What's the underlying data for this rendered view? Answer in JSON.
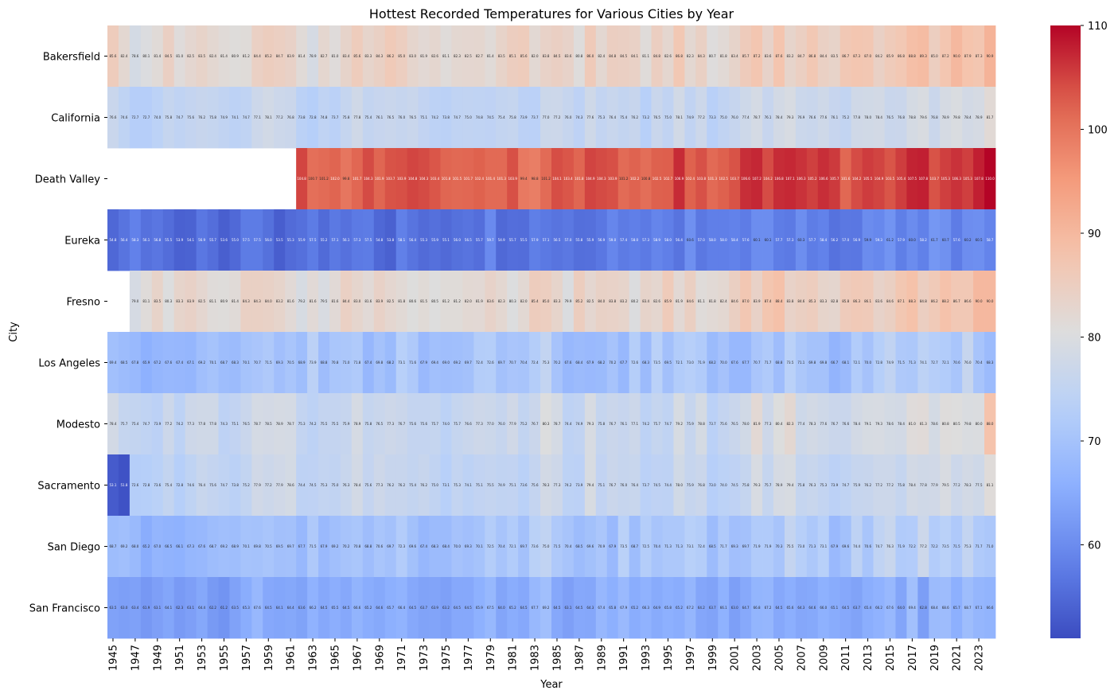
{
  "chart_data": {
    "type": "heatmap",
    "title": "Hottest Recorded Temperatures for Various Cities by Year",
    "xlabel": "Year",
    "ylabel": "City",
    "colormap": "coolwarm",
    "vmin": 51,
    "vmax": 110,
    "colorbar_ticks": [
      60,
      70,
      80,
      90,
      100,
      110
    ],
    "x_tick_labels": [
      "1945",
      "1947",
      "1949",
      "1951",
      "1953",
      "1955",
      "1957",
      "1959",
      "1961",
      "1963",
      "1965",
      "1967",
      "1969",
      "1971",
      "1973",
      "1975",
      "1977",
      "1979",
      "1981",
      "1983",
      "1985",
      "1987",
      "1989",
      "1991",
      "1993",
      "1995",
      "1997",
      "1999",
      "2001",
      "2003",
      "2005",
      "2007",
      "2009",
      "2011",
      "2013",
      "2015",
      "2017",
      "2019",
      "2021",
      "2023"
    ],
    "year_start": 1945,
    "year_end": 2024,
    "cities": [
      "Bakersfield",
      "California",
      "Death Valley",
      "Eureka",
      "Fresno",
      "Los Angeles",
      "Modesto",
      "Sacramento",
      "San Diego",
      "San Francisco"
    ],
    "series": [
      {
        "name": "Bakersfield",
        "values": [
          85.6,
          82.4,
          78.6,
          80.1,
          81.4,
          84.5,
          81.0,
          82.5,
          83.5,
          82.4,
          81.4,
          80.9,
          81.2,
          84.4,
          85.2,
          84.7,
          83.9,
          81.4,
          78.9,
          82.7,
          81.0,
          83.4,
          85.6,
          83.3,
          84.3,
          86.2,
          85.0,
          83.0,
          81.9,
          82.6,
          81.1,
          82.3,
          82.5,
          82.7,
          81.4,
          83.5,
          85.1,
          85.6,
          82.0,
          83.8,
          84.5,
          83.6,
          80.8,
          86.0,
          82.4,
          84.8,
          84.5,
          84.1,
          81.1,
          84.8,
          82.6,
          86.8,
          82.3,
          84.3,
          80.7,
          81.8,
          83.4,
          85.7,
          87.2,
          83.6,
          87.6,
          83.2,
          84.7,
          86.8,
          84.4,
          83.5,
          86.7,
          87.3,
          87.0,
          84.2,
          85.9,
          86.8,
          88.8,
          89.3,
          85.0,
          87.2,
          90.0,
          87.9,
          87.3,
          90.9
        ]
      },
      {
        "name": "California",
        "values": [
          76.6,
          74.6,
          72.7,
          72.7,
          74.0,
          75.8,
          74.7,
          75.6,
          76.2,
          75.8,
          74.9,
          74.1,
          74.7,
          77.1,
          78.1,
          77.2,
          76.8,
          73.8,
          72.8,
          74.8,
          73.7,
          75.8,
          77.8,
          75.4,
          76.1,
          76.5,
          76.0,
          76.5,
          75.1,
          74.2,
          73.8,
          74.7,
          75.0,
          74.8,
          74.5,
          75.4,
          75.8,
          73.9,
          73.7,
          77.0,
          77.2,
          76.0,
          74.3,
          77.6,
          75.3,
          76.4,
          75.4,
          76.2,
          73.2,
          76.5,
          75.0,
          78.1,
          74.9,
          77.2,
          73.3,
          75.0,
          76.0,
          77.4,
          78.7,
          76.1,
          78.4,
          79.3,
          76.9,
          76.6,
          77.6,
          76.1,
          75.2,
          77.8,
          78.0,
          78.4,
          76.5,
          76.8,
          78.8,
          79.6,
          76.8,
          78.9,
          79.8,
          78.4,
          78.9,
          81.7
        ]
      },
      {
        "name": "Death Valley",
        "values": [
          null,
          null,
          null,
          null,
          null,
          null,
          null,
          null,
          null,
          null,
          null,
          null,
          null,
          null,
          null,
          null,
          null,
          104.8,
          100.7,
          101.2,
          102.0,
          99.8,
          101.7,
          104.3,
          101.9,
          103.7,
          103.9,
          104.8,
          104.3,
          103.4,
          101.8,
          101.5,
          101.7,
          102.4,
          101.4,
          101.3,
          103.9,
          99.4,
          98.8,
          101.2,
          104.1,
          103.4,
          101.8,
          104.9,
          104.3,
          103.9,
          101.2,
          102.2,
          100.8,
          102.5,
          102.7,
          106.9,
          102.4,
          103.8,
          101.3,
          102.5,
          103.7,
          106.6,
          107.2,
          104.2,
          106.8,
          107.1,
          106.3,
          105.2,
          106.6,
          105.7,
          101.6,
          104.2,
          105.5,
          104.9,
          103.5,
          105.4,
          107.5,
          107.8,
          103.7,
          105.3,
          106.3,
          105.3,
          107.8,
          110.0
        ]
      },
      {
        "name": "Eureka",
        "values": [
          54.8,
          56.4,
          58.3,
          56.1,
          56.8,
          55.5,
          53.9,
          54.1,
          56.9,
          55.7,
          53.6,
          55.0,
          57.5,
          57.5,
          56.0,
          53.5,
          55.3,
          55.9,
          57.5,
          55.2,
          57.1,
          56.1,
          57.3,
          57.5,
          54.8,
          53.8,
          58.1,
          56.4,
          55.3,
          55.9,
          55.1,
          56.0,
          56.5,
          55.7,
          59.7,
          54.9,
          55.7,
          55.5,
          57.9,
          57.1,
          56.5,
          57.0,
          55.8,
          55.9,
          56.9,
          59.0,
          57.4,
          58.0,
          57.3,
          58.9,
          58.0,
          56.4,
          60.6,
          57.0,
          58.0,
          58.0,
          58.4,
          57.6,
          60.1,
          60.1,
          57.7,
          57.3,
          60.3,
          57.7,
          58.4,
          56.2,
          57.0,
          56.9,
          59.9,
          59.3,
          61.2,
          57.9,
          60.0,
          58.2,
          61.7,
          60.7,
          57.6,
          60.2,
          60.5,
          58.7
        ]
      },
      {
        "name": "Fresno",
        "values": [
          null,
          null,
          79.0,
          81.1,
          83.5,
          80.3,
          83.3,
          83.9,
          82.5,
          81.1,
          80.9,
          81.4,
          84.3,
          84.3,
          84.0,
          83.2,
          81.6,
          79.2,
          81.6,
          79.5,
          81.6,
          84.4,
          83.0,
          81.6,
          83.9,
          82.5,
          81.8,
          80.6,
          81.5,
          80.5,
          81.2,
          81.2,
          82.0,
          81.9,
          83.6,
          82.3,
          80.3,
          82.0,
          85.4,
          85.0,
          83.3,
          79.9,
          85.2,
          82.5,
          84.0,
          83.8,
          83.2,
          80.2,
          83.4,
          82.6,
          85.9,
          81.9,
          84.6,
          81.1,
          81.8,
          82.4,
          84.6,
          87.0,
          83.9,
          87.4,
          88.4,
          83.8,
          84.6,
          85.3,
          83.3,
          82.8,
          85.8,
          86.3,
          86.1,
          83.6,
          84.6,
          87.1,
          88.3,
          84.8,
          86.2,
          88.2,
          86.7,
          86.6,
          90.0,
          90.0
        ]
      },
      {
        "name": "Los Angeles",
        "values": [
          69.4,
          68.5,
          67.8,
          65.9,
          67.2,
          67.6,
          67.4,
          67.1,
          69.2,
          70.1,
          68.7,
          68.3,
          70.1,
          70.7,
          71.5,
          69.3,
          70.5,
          68.9,
          73.9,
          68.8,
          70.8,
          71.0,
          71.8,
          67.4,
          69.8,
          68.2,
          73.1,
          71.6,
          67.9,
          69.4,
          69.0,
          69.2,
          69.7,
          72.4,
          72.6,
          69.7,
          70.7,
          70.4,
          72.4,
          75.3,
          70.2,
          67.6,
          68.4,
          67.9,
          68.2,
          70.2,
          67.7,
          72.6,
          68.3,
          73.5,
          69.5,
          72.1,
          73.0,
          71.9,
          68.2,
          70.0,
          67.6,
          67.7,
          70.7,
          71.7,
          68.8,
          73.5,
          71.1,
          69.8,
          69.8,
          66.7,
          68.1,
          72.1,
          70.0,
          72.8,
          74.9,
          71.5,
          71.3,
          74.1,
          72.7,
          72.1,
          70.6,
          76.0,
          70.4,
          68.3
        ]
      },
      {
        "name": "Modesto",
        "values": [
          78.4,
          75.7,
          75.4,
          74.7,
          73.9,
          77.2,
          74.2,
          77.3,
          77.8,
          77.8,
          74.3,
          75.1,
          76.5,
          78.7,
          78.5,
          78.9,
          78.7,
          75.3,
          74.2,
          75.5,
          75.5,
          75.9,
          78.9,
          75.8,
          76.5,
          77.3,
          76.7,
          75.6,
          75.6,
          75.7,
          74.0,
          75.7,
          76.6,
          77.3,
          77.0,
          76.0,
          77.9,
          75.2,
          76.7,
          80.3,
          78.7,
          74.4,
          74.9,
          79.3,
          75.8,
          76.7,
          76.1,
          77.1,
          74.2,
          75.7,
          74.7,
          79.2,
          75.9,
          78.8,
          73.7,
          75.6,
          76.5,
          78.0,
          81.9,
          77.3,
          80.4,
          82.3,
          77.4,
          78.3,
          77.6,
          76.7,
          76.6,
          78.4,
          79.1,
          79.3,
          78.6,
          78.4,
          81.0,
          81.3,
          78.6,
          80.8,
          80.5,
          79.8,
          80.0,
          88.0
        ]
      },
      {
        "name": "Sacramento",
        "values": [
          53.1,
          51.8,
          72.6,
          72.8,
          73.6,
          75.4,
          72.8,
          74.6,
          76.4,
          75.6,
          74.7,
          73.8,
          75.2,
          77.9,
          77.2,
          77.9,
          78.6,
          74.4,
          74.5,
          75.3,
          75.0,
          76.3,
          78.4,
          75.6,
          77.3,
          76.2,
          76.2,
          75.4,
          76.2,
          75.0,
          73.1,
          75.3,
          74.1,
          75.1,
          75.5,
          74.9,
          75.1,
          73.6,
          75.6,
          78.3,
          77.3,
          74.2,
          73.9,
          79.4,
          75.1,
          76.7,
          76.0,
          76.4,
          73.7,
          74.5,
          74.4,
          78.0,
          75.9,
          76.8,
          73.0,
          74.0,
          74.5,
          75.8,
          79.3,
          75.7,
          78.9,
          79.4,
          75.8,
          76.3,
          75.3,
          73.9,
          74.7,
          75.9,
          76.2,
          77.2,
          77.2,
          75.8,
          78.4,
          77.8,
          77.9,
          79.5,
          77.2,
          78.3,
          77.5,
          81.1
        ]
      },
      {
        "name": "San Diego",
        "values": [
          68.7,
          69.2,
          68.0,
          65.2,
          67.0,
          66.5,
          66.1,
          67.3,
          67.6,
          68.7,
          69.2,
          68.9,
          70.1,
          69.8,
          70.5,
          69.5,
          69.7,
          67.7,
          71.5,
          67.9,
          69.2,
          70.2,
          70.8,
          68.8,
          70.6,
          69.7,
          72.3,
          69.6,
          67.4,
          68.3,
          68.4,
          70.0,
          69.3,
          70.1,
          72.5,
          70.4,
          72.1,
          69.7,
          73.6,
          75.0,
          71.5,
          70.4,
          68.5,
          69.6,
          70.9,
          67.9,
          73.5,
          68.7,
          72.5,
          70.4,
          71.3,
          71.3,
          73.1,
          72.4,
          68.5,
          71.7,
          69.3,
          69.7,
          71.9,
          71.9,
          70.3,
          75.5,
          73.0,
          71.3,
          73.1,
          67.9,
          69.6,
          74.4,
          70.6,
          74.7,
          76.3,
          71.9,
          72.2,
          77.2,
          72.2,
          73.5,
          71.5,
          75.3,
          71.7,
          71.0
        ]
      },
      {
        "name": "San Francisco",
        "values": [
          63.5,
          63.0,
          63.4,
          61.9,
          63.1,
          64.1,
          62.3,
          63.1,
          64.4,
          62.2,
          61.2,
          63.5,
          65.3,
          67.6,
          64.5,
          64.1,
          64.4,
          63.6,
          66.2,
          64.5,
          65.5,
          64.5,
          66.6,
          65.2,
          64.6,
          65.7,
          66.4,
          64.5,
          63.7,
          63.9,
          63.2,
          64.5,
          64.5,
          65.9,
          67.5,
          64.0,
          65.2,
          64.5,
          67.7,
          69.2,
          64.5,
          63.1,
          64.5,
          64.3,
          67.4,
          65.8,
          67.9,
          65.2,
          66.3,
          64.9,
          65.8,
          65.2,
          67.2,
          64.2,
          63.7,
          66.1,
          63.0,
          64.7,
          66.8,
          67.2,
          64.5,
          65.6,
          64.3,
          64.6,
          66.0,
          65.1,
          64.5,
          63.7,
          65.4,
          66.2,
          67.6,
          64.0,
          69.4,
          62.8,
          68.4,
          68.6,
          65.7,
          68.7,
          67.1,
          66.6
        ]
      }
    ]
  }
}
